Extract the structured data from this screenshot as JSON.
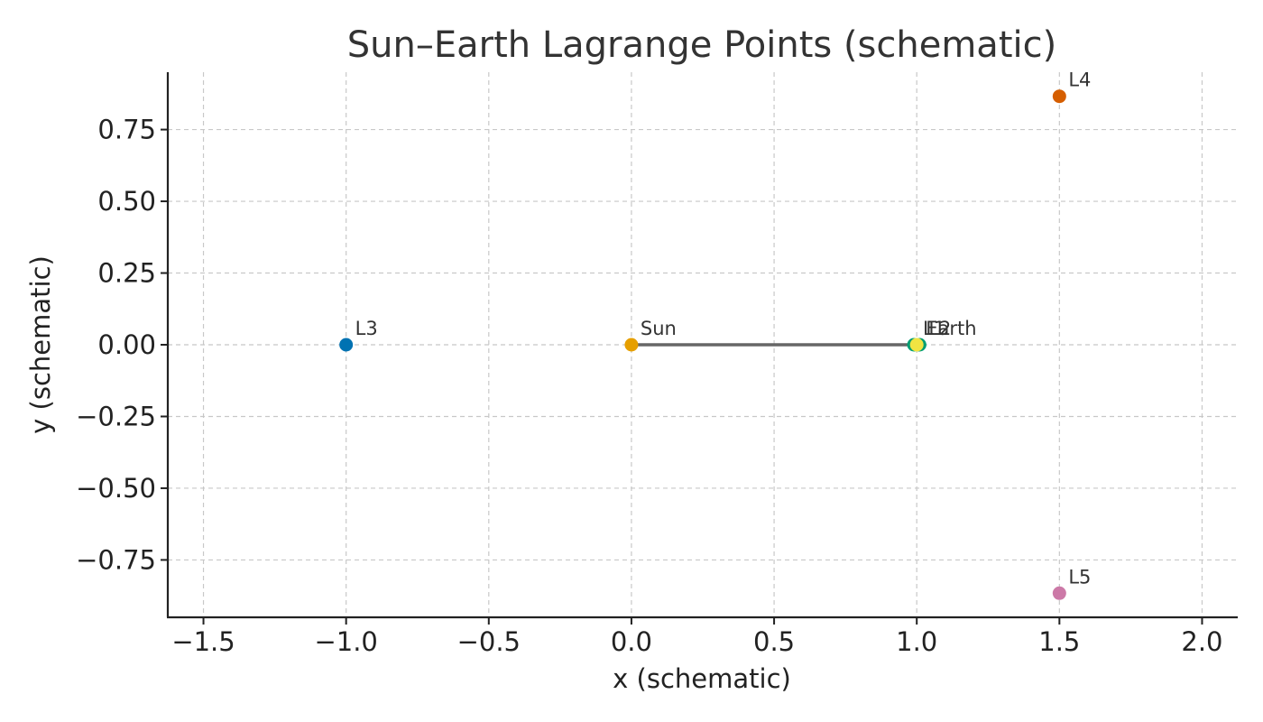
{
  "chart_data": {
    "type": "scatter",
    "title": "Sun–Earth Lagrange Points (schematic)",
    "xlabel": "x (schematic)",
    "ylabel": "y (schematic)",
    "xlim": [
      -1.625,
      2.125
    ],
    "ylim": [
      -0.95,
      0.95
    ],
    "x_ticks": [
      -1.5,
      -1.0,
      -0.5,
      0.0,
      0.5,
      1.0,
      1.5,
      2.0
    ],
    "x_tick_labels": [
      "−1.5",
      "−1.0",
      "−0.5",
      "0.0",
      "0.5",
      "1.0",
      "1.5",
      "2.0"
    ],
    "y_ticks": [
      0.75,
      0.5,
      0.25,
      0.0,
      -0.25,
      -0.5,
      -0.75
    ],
    "y_tick_labels": [
      "0.75",
      "0.50",
      "0.25",
      "0.00",
      "−0.25",
      "−0.50",
      "−0.75"
    ],
    "grid": true,
    "line": {
      "from": [
        0.0,
        0.0
      ],
      "to": [
        1.0,
        0.0
      ],
      "color": "#666666"
    },
    "points": [
      {
        "label": "L3",
        "x": -1.0,
        "y": 0.0,
        "color": "#0072B2"
      },
      {
        "label": "Sun",
        "x": 0.0,
        "y": 0.0,
        "color": "#E69F00"
      },
      {
        "label": "L1",
        "x": 0.99,
        "y": 0.0,
        "color": "#009E73"
      },
      {
        "label": "L2",
        "x": 1.01,
        "y": 0.0,
        "color": "#009E73"
      },
      {
        "label": "Earth",
        "x": 1.0,
        "y": 0.0,
        "color": "#F0E442"
      },
      {
        "label": "L4",
        "x": 1.5,
        "y": 0.866,
        "color": "#D55E00"
      },
      {
        "label": "L5",
        "x": 1.5,
        "y": -0.866,
        "color": "#CC79A7"
      }
    ]
  }
}
